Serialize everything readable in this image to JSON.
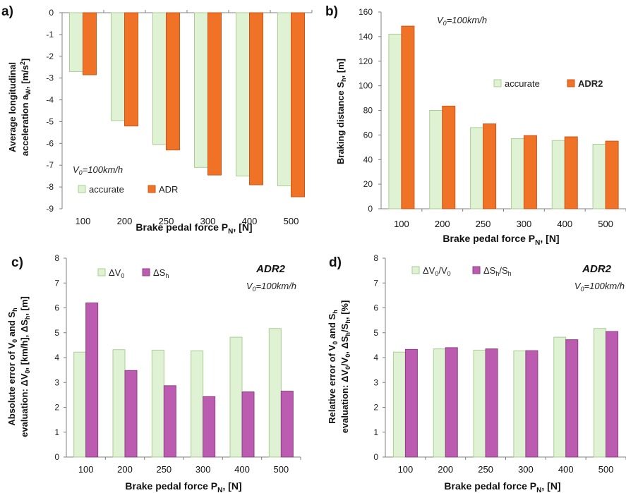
{
  "colors": {
    "accurate_fill": "#dff2d4",
    "accurate_stroke": "#a9cf92",
    "adr_fill": "#f07227",
    "adr_stroke": "#c9571a",
    "dV_fill": "#dff2d4",
    "dV_stroke": "#a9cf92",
    "dS_fill": "#bb5cb0",
    "dS_stroke": "#8e3f86",
    "axis": "#808080",
    "grid": "#d8d8d8"
  },
  "chart_data": [
    {
      "panel": "a)",
      "type": "bar",
      "categories": [
        "100",
        "200",
        "250",
        "300",
        "400",
        "500"
      ],
      "series": [
        {
          "name": "accurate",
          "values": [
            -2.7,
            -4.95,
            -6.05,
            -7.1,
            -7.5,
            -7.95
          ]
        },
        {
          "name": "ADR",
          "values": [
            -2.85,
            -5.2,
            -6.3,
            -7.45,
            -7.9,
            -8.45
          ]
        }
      ],
      "ylim": [
        -9,
        0
      ],
      "yticks": [
        "0",
        "-1",
        "-2",
        "-3",
        "-4",
        "-5",
        "-6",
        "-7",
        "-8",
        "-9"
      ],
      "xlabel": "Brake pedal force P",
      "xlabel_sub": "N",
      "xlabel_unit": ",  [N]",
      "ylabel_line1": "Average longitudinal",
      "ylabel_line2": "acceleration a",
      "ylabel_line2_sub": "W",
      "ylabel_line2_unit": ", [m/s",
      "ylabel_line2_sup": "2",
      "ylabel_line2_end": "]",
      "annotation": "V",
      "annotation_sub": "0",
      "annotation_rest": "=100km/h",
      "grid": false,
      "legend_position": "bottom-left"
    },
    {
      "panel": "b)",
      "type": "bar",
      "categories": [
        "100",
        "200",
        "250",
        "300",
        "400",
        "500"
      ],
      "series": [
        {
          "name": "accurate",
          "values": [
            142,
            80,
            66,
            57,
            55.5,
            52.5
          ]
        },
        {
          "name": "ADR2",
          "values": [
            148.5,
            83.5,
            69,
            59.5,
            58.5,
            55
          ]
        }
      ],
      "ylim": [
        0,
        160
      ],
      "yticks": [
        "0",
        "20",
        "40",
        "60",
        "80",
        "100",
        "120",
        "140",
        "160"
      ],
      "xlabel": "Brake pedal force P",
      "xlabel_sub": "N",
      "xlabel_unit": ",  [N]",
      "ylabel": "Braking distance S",
      "ylabel_sub": "h",
      "ylabel_unit": ", [m]",
      "annotation": "V",
      "annotation_sub": "0",
      "annotation_rest": "=100km/h",
      "grid": false,
      "legend_position": "right"
    },
    {
      "panel": "c)",
      "type": "bar",
      "categories": [
        "100",
        "200",
        "250",
        "300",
        "400",
        "500"
      ],
      "series": [
        {
          "name": "ΔV",
          "name_sub": "0",
          "values": [
            4.22,
            4.32,
            4.3,
            4.27,
            4.82,
            5.17
          ]
        },
        {
          "name": "ΔS",
          "name_sub": "h",
          "values": [
            6.2,
            3.48,
            2.87,
            2.43,
            2.62,
            2.65
          ]
        }
      ],
      "ylim": [
        0,
        8
      ],
      "yticks": [
        "0",
        "1",
        "2",
        "3",
        "4",
        "5",
        "6",
        "7",
        "8"
      ],
      "xlabel": "Brake pedal force P",
      "xlabel_sub": "N",
      "xlabel_unit": ",  [N]",
      "ylabel_line1": "Absolute error of V",
      "ylabel_line1_sub": "0",
      "ylabel_line1_mid": " and S",
      "ylabel_line1_sub2": "h",
      "ylabel_line2": "evaluation: ΔV",
      "ylabel_line2_sub": "0",
      "ylabel_line2_mid": ", [km/h], ΔS",
      "ylabel_line2_sub2": "h",
      "ylabel_line2_end": ", [m]",
      "title": "ADR2",
      "annotation": "V",
      "annotation_sub": "0",
      "annotation_rest": "=100km/h",
      "grid": false,
      "legend_position": "top-left"
    },
    {
      "panel": "d)",
      "type": "bar",
      "categories": [
        "100",
        "200",
        "250",
        "300",
        "400",
        "500"
      ],
      "series": [
        {
          "name": "ΔV",
          "name_sub": "0",
          "name_rest": "/V",
          "name_sub2": "0",
          "values": [
            4.22,
            4.35,
            4.3,
            4.27,
            4.82,
            5.17
          ]
        },
        {
          "name": "ΔS",
          "name_sub": "h",
          "name_rest": "/S",
          "name_sub2": "h",
          "values": [
            4.33,
            4.4,
            4.35,
            4.28,
            4.72,
            5.05
          ]
        }
      ],
      "ylim": [
        0,
        8
      ],
      "yticks": [
        "0",
        "1",
        "2",
        "3",
        "4",
        "5",
        "6",
        "7",
        "8"
      ],
      "xlabel": "Brake pedal force P",
      "xlabel_sub": "N",
      "xlabel_unit": ",  [N]",
      "ylabel_line1": "Relative error of V",
      "ylabel_line1_sub": "0",
      "ylabel_line1_mid": " and S",
      "ylabel_line1_sub2": "h",
      "ylabel_line2": "evaluation: ΔV",
      "ylabel_line2_sub": "0",
      "ylabel_line2_mid": "/V",
      "ylabel_line2_sub2": "0",
      "ylabel_line2_mid2": ", ΔS",
      "ylabel_line2_sub3": "h",
      "ylabel_line2_mid3": "/S",
      "ylabel_line2_sub4": "h",
      "ylabel_line2_end": ", [%]",
      "title": "ADR2",
      "annotation": "V",
      "annotation_sub": "0",
      "annotation_rest": "=100km/h",
      "grid": false,
      "legend_position": "top"
    }
  ]
}
